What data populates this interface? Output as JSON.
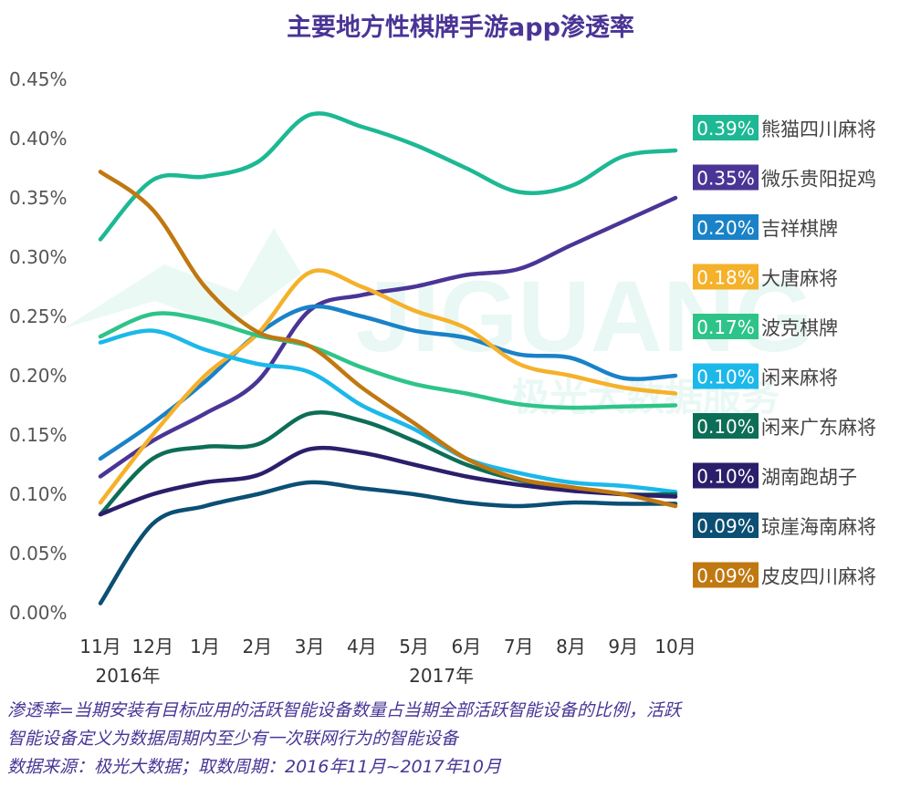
{
  "title": "主要地方性棋牌手游app渗透率",
  "watermark": {
    "text": "JIGUANG",
    "subtext": "极光大数据服务"
  },
  "footnote": {
    "line1": "渗透率=当期安装有目标应用的活跃智能设备数量占当期全部活跃智能设备的比例，活跃",
    "line2": "智能设备定义为数据周期内至少有一次联网行为的智能设备",
    "source": "数据来源：极光大数据；取数周期：2016年11月~2017年10月"
  },
  "chart_data": {
    "type": "line",
    "title": "主要地方性棋牌手游app渗透率",
    "xlabel": "",
    "ylabel": "",
    "ylim": [
      0,
      0.45
    ],
    "yticks": [
      "0.00%",
      "0.05%",
      "0.10%",
      "0.15%",
      "0.20%",
      "0.25%",
      "0.30%",
      "0.35%",
      "0.40%",
      "0.45%"
    ],
    "categories": [
      "11月",
      "12月",
      "1月",
      "2月",
      "3月",
      "4月",
      "5月",
      "6月",
      "7月",
      "8月",
      "9月",
      "10月"
    ],
    "year_labels": [
      {
        "at": "11月",
        "label": "2016年"
      },
      {
        "at": "5月",
        "label": "2017年"
      }
    ],
    "grid": false,
    "legend_position": "right",
    "series": [
      {
        "name": "熊猫四川麻将",
        "label": "0.39%",
        "color": "#1db894",
        "values": [
          0.315,
          0.365,
          0.368,
          0.38,
          0.42,
          0.41,
          0.395,
          0.375,
          0.355,
          0.36,
          0.385,
          0.39
        ]
      },
      {
        "name": "微乐贵阳捉鸡",
        "label": "0.35%",
        "color": "#4a3596",
        "values": [
          0.115,
          0.145,
          0.168,
          0.195,
          0.255,
          0.268,
          0.275,
          0.285,
          0.29,
          0.31,
          0.33,
          0.35
        ]
      },
      {
        "name": "吉祥棋牌",
        "label": "0.20%",
        "color": "#1a82c8",
        "values": [
          0.13,
          0.16,
          0.195,
          0.235,
          0.258,
          0.25,
          0.238,
          0.232,
          0.218,
          0.215,
          0.198,
          0.2
        ]
      },
      {
        "name": "大唐麻将",
        "label": "0.18%",
        "color": "#f5b12a",
        "values": [
          0.093,
          0.15,
          0.2,
          0.235,
          0.287,
          0.275,
          0.255,
          0.24,
          0.21,
          0.2,
          0.19,
          0.185
        ]
      },
      {
        "name": "波克棋牌",
        "label": "0.17%",
        "color": "#2ec489",
        "values": [
          0.233,
          0.252,
          0.247,
          0.234,
          0.225,
          0.207,
          0.193,
          0.185,
          0.176,
          0.173,
          0.174,
          0.175
        ]
      },
      {
        "name": "闲来麻将",
        "label": "0.10%",
        "color": "#1cb8ea",
        "values": [
          0.228,
          0.238,
          0.222,
          0.21,
          0.203,
          0.175,
          0.155,
          0.13,
          0.118,
          0.11,
          0.107,
          0.102
        ]
      },
      {
        "name": "闲来广东麻将",
        "label": "0.10%",
        "color": "#0d6e57",
        "values": [
          0.083,
          0.13,
          0.14,
          0.142,
          0.168,
          0.162,
          0.145,
          0.125,
          0.112,
          0.105,
          0.1,
          0.1
        ]
      },
      {
        "name": "湖南跑胡子",
        "label": "0.10%",
        "color": "#2b1f6b",
        "values": [
          0.083,
          0.1,
          0.11,
          0.116,
          0.138,
          0.135,
          0.125,
          0.115,
          0.108,
          0.103,
          0.1,
          0.098
        ]
      },
      {
        "name": "琼崖海南麻将",
        "label": "0.09%",
        "color": "#0b4f74",
        "values": [
          0.008,
          0.075,
          0.09,
          0.1,
          0.11,
          0.105,
          0.1,
          0.093,
          0.09,
          0.093,
          0.092,
          0.092
        ]
      },
      {
        "name": "皮皮四川麻将",
        "label": "0.09%",
        "color": "#c07810",
        "values": [
          0.372,
          0.34,
          0.275,
          0.237,
          0.225,
          0.19,
          0.16,
          0.13,
          0.113,
          0.106,
          0.1,
          0.09
        ]
      }
    ]
  }
}
